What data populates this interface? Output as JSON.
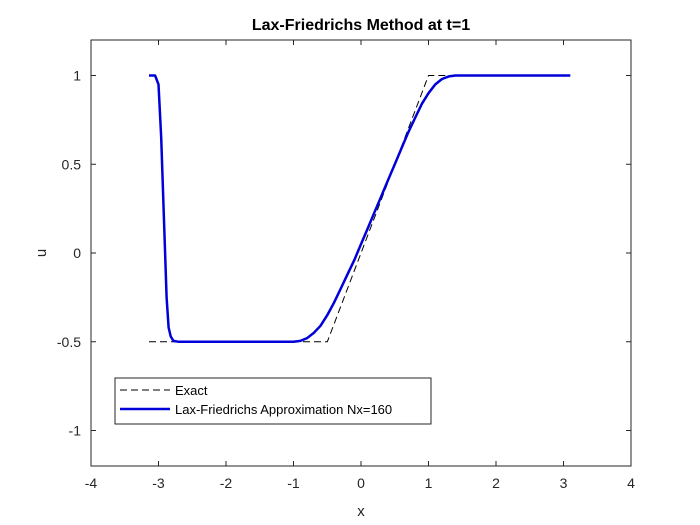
{
  "chart_data": {
    "type": "line",
    "title": "Lax-Friedrichs Method at t=1",
    "xlabel": "x",
    "ylabel": "u",
    "xlim": [
      -4,
      4
    ],
    "ylim": [
      -1.2,
      1.2
    ],
    "xticks": [
      -4,
      -3,
      -2,
      -1,
      0,
      1,
      2,
      3,
      4
    ],
    "xtick_labels": [
      "-4",
      "-3",
      "-2",
      "-1",
      "0",
      "1",
      "2",
      "3",
      "4"
    ],
    "yticks": [
      -1,
      -0.5,
      0,
      0.5,
      1
    ],
    "ytick_labels": [
      "-1",
      "-0.5",
      "0",
      "0.5",
      "1"
    ],
    "grid": false,
    "legend_position": "lower-left",
    "series": [
      {
        "name": "Exact",
        "style": "dashed",
        "color": "#000000",
        "x": [
          -3.14,
          -0.5,
          1.0,
          3.1
        ],
        "y": [
          -0.5,
          -0.5,
          1.0,
          1.0
        ]
      },
      {
        "name": "Lax-Friedrichs Approximation Nx=160",
        "style": "solid",
        "color": "#0000d9",
        "x": [
          -3.14,
          -3.05,
          -3.0,
          -2.96,
          -2.92,
          -2.88,
          -2.85,
          -2.82,
          -2.78,
          -2.7,
          -2.5,
          -2.0,
          -1.5,
          -1.0,
          -0.9,
          -0.8,
          -0.7,
          -0.6,
          -0.5,
          -0.4,
          -0.3,
          -0.2,
          -0.1,
          0.0,
          0.1,
          0.2,
          0.3,
          0.4,
          0.5,
          0.6,
          0.7,
          0.8,
          0.9,
          1.0,
          1.1,
          1.2,
          1.3,
          1.4,
          1.6,
          2.0,
          2.5,
          3.1
        ],
        "y": [
          1.0,
          1.0,
          0.95,
          0.65,
          0.2,
          -0.25,
          -0.42,
          -0.47,
          -0.495,
          -0.5,
          -0.5,
          -0.5,
          -0.5,
          -0.5,
          -0.495,
          -0.48,
          -0.45,
          -0.41,
          -0.35,
          -0.28,
          -0.2,
          -0.12,
          -0.04,
          0.05,
          0.14,
          0.23,
          0.32,
          0.41,
          0.5,
          0.59,
          0.68,
          0.76,
          0.84,
          0.9,
          0.95,
          0.98,
          0.995,
          1.0,
          1.0,
          1.0,
          1.0,
          1.0
        ]
      }
    ]
  }
}
